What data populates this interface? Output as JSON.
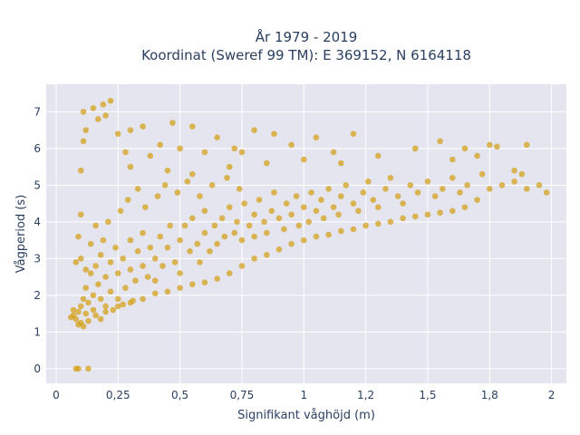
{
  "chart_data": {
    "type": "scatter",
    "title": "År 1979 - 2019",
    "subtitle": "Koordinat (Sweref 99 TM): E 369152, N 6164118",
    "xlabel": "Signifikant våghöjd (m)",
    "ylabel": "Vågperiod (s)",
    "xlim": [
      -0.04,
      2.06
    ],
    "ylim": [
      -0.4,
      7.75
    ],
    "x_ticks": [
      0,
      0.25,
      0.5,
      0.75,
      1,
      1.25,
      1.5,
      1.75,
      2
    ],
    "x_tick_labels": [
      "0",
      "0,25",
      "0,5",
      "0,75",
      "1",
      "1,2",
      "1,5",
      "1,8",
      "2"
    ],
    "y_ticks": [
      0,
      1,
      2,
      3,
      4,
      5,
      6,
      7
    ],
    "y_tick_labels": [
      "0",
      "1",
      "2",
      "3",
      "4",
      "5",
      "6",
      "7"
    ],
    "grid": true,
    "legend": false,
    "marker_color": "#D4A11E",
    "plot_background": "#E5E5F0",
    "points": [
      [
        0.07,
        1.45
      ],
      [
        0.08,
        1.35
      ],
      [
        0.09,
        1.55
      ],
      [
        0.1,
        1.7
      ],
      [
        0.1,
        1.25
      ],
      [
        0.11,
        1.9
      ],
      [
        0.12,
        1.5
      ],
      [
        0.12,
        2.2
      ],
      [
        0.13,
        1.8
      ],
      [
        0.14,
        2.6
      ],
      [
        0.15,
        2.0
      ],
      [
        0.15,
        1.6
      ],
      [
        0.16,
        2.8
      ],
      [
        0.17,
        2.3
      ],
      [
        0.18,
        1.9
      ],
      [
        0.18,
        3.1
      ],
      [
        0.2,
        2.5
      ],
      [
        0.2,
        1.7
      ],
      [
        0.22,
        2.9
      ],
      [
        0.22,
        2.1
      ],
      [
        0.24,
        3.3
      ],
      [
        0.25,
        2.6
      ],
      [
        0.25,
        1.9
      ],
      [
        0.27,
        3.0
      ],
      [
        0.28,
        2.2
      ],
      [
        0.3,
        3.5
      ],
      [
        0.3,
        2.7
      ],
      [
        0.32,
        2.4
      ],
      [
        0.33,
        3.2
      ],
      [
        0.35,
        2.8
      ],
      [
        0.35,
        3.7
      ],
      [
        0.37,
        2.5
      ],
      [
        0.38,
        3.3
      ],
      [
        0.4,
        3.0
      ],
      [
        0.4,
        2.4
      ],
      [
        0.42,
        3.6
      ],
      [
        0.43,
        2.8
      ],
      [
        0.45,
        3.3
      ],
      [
        0.46,
        3.9
      ],
      [
        0.48,
        2.9
      ],
      [
        0.5,
        3.5
      ],
      [
        0.5,
        2.6
      ],
      [
        0.52,
        3.9
      ],
      [
        0.54,
        3.2
      ],
      [
        0.55,
        4.1
      ],
      [
        0.57,
        3.4
      ],
      [
        0.58,
        2.9
      ],
      [
        0.6,
        3.7
      ],
      [
        0.6,
        4.3
      ],
      [
        0.62,
        3.2
      ],
      [
        0.64,
        3.9
      ],
      [
        0.65,
        3.4
      ],
      [
        0.67,
        4.1
      ],
      [
        0.68,
        3.6
      ],
      [
        0.7,
        4.4
      ],
      [
        0.72,
        3.7
      ],
      [
        0.73,
        4.0
      ],
      [
        0.75,
        3.5
      ],
      [
        0.76,
        4.5
      ],
      [
        0.78,
        3.9
      ],
      [
        0.8,
        4.2
      ],
      [
        0.8,
        3.6
      ],
      [
        0.82,
        4.6
      ],
      [
        0.84,
        4.0
      ],
      [
        0.85,
        3.7
      ],
      [
        0.87,
        4.3
      ],
      [
        0.88,
        4.8
      ],
      [
        0.9,
        4.1
      ],
      [
        0.92,
        3.8
      ],
      [
        0.93,
        4.5
      ],
      [
        0.95,
        4.2
      ],
      [
        0.97,
        4.7
      ],
      [
        0.98,
        3.9
      ],
      [
        1.0,
        4.4
      ],
      [
        1.02,
        4.0
      ],
      [
        1.03,
        4.8
      ],
      [
        1.05,
        4.3
      ],
      [
        1.07,
        4.6
      ],
      [
        1.08,
        4.1
      ],
      [
        1.1,
        4.9
      ],
      [
        1.12,
        4.4
      ],
      [
        1.14,
        4.2
      ],
      [
        1.15,
        4.7
      ],
      [
        1.17,
        5.0
      ],
      [
        1.2,
        4.5
      ],
      [
        1.22,
        4.3
      ],
      [
        1.24,
        4.8
      ],
      [
        1.26,
        5.1
      ],
      [
        1.28,
        4.6
      ],
      [
        1.3,
        4.4
      ],
      [
        1.33,
        4.9
      ],
      [
        1.35,
        5.2
      ],
      [
        1.38,
        4.7
      ],
      [
        1.4,
        4.5
      ],
      [
        1.43,
        5.0
      ],
      [
        1.46,
        4.8
      ],
      [
        1.5,
        5.1
      ],
      [
        1.53,
        4.7
      ],
      [
        1.56,
        4.9
      ],
      [
        1.6,
        5.2
      ],
      [
        1.63,
        4.8
      ],
      [
        1.66,
        5.0
      ],
      [
        1.7,
        4.6
      ],
      [
        1.72,
        5.3
      ],
      [
        1.75,
        4.9
      ],
      [
        1.8,
        5.0
      ],
      [
        1.85,
        5.1
      ],
      [
        1.9,
        4.9
      ],
      [
        1.95,
        5.0
      ],
      [
        1.98,
        4.8
      ],
      [
        0.1,
        4.2
      ],
      [
        0.1,
        5.4
      ],
      [
        0.11,
        6.2
      ],
      [
        0.12,
        6.5
      ],
      [
        0.11,
        7.0
      ],
      [
        0.15,
        7.1
      ],
      [
        0.17,
        6.8
      ],
      [
        0.19,
        7.2
      ],
      [
        0.2,
        6.9
      ],
      [
        0.22,
        7.3
      ],
      [
        0.25,
        6.4
      ],
      [
        0.28,
        5.9
      ],
      [
        0.3,
        6.5
      ],
      [
        0.35,
        6.6
      ],
      [
        0.38,
        5.8
      ],
      [
        0.42,
        6.1
      ],
      [
        0.47,
        6.7
      ],
      [
        0.5,
        6.0
      ],
      [
        0.55,
        6.6
      ],
      [
        0.6,
        5.9
      ],
      [
        0.65,
        6.3
      ],
      [
        0.72,
        6.0
      ],
      [
        0.8,
        6.5
      ],
      [
        0.88,
        6.4
      ],
      [
        0.95,
        6.1
      ],
      [
        1.05,
        6.3
      ],
      [
        1.12,
        5.9
      ],
      [
        1.2,
        6.4
      ],
      [
        1.3,
        5.8
      ],
      [
        1.45,
        6.0
      ],
      [
        1.55,
        6.2
      ],
      [
        1.6,
        5.7
      ],
      [
        1.65,
        6.0
      ],
      [
        1.7,
        5.8
      ],
      [
        1.75,
        6.1
      ],
      [
        1.78,
        6.05
      ],
      [
        1.9,
        6.1
      ],
      [
        1.85,
        5.4
      ],
      [
        1.88,
        5.3
      ],
      [
        0.09,
        0.0
      ],
      [
        0.08,
        0.0
      ],
      [
        0.13,
        0.0
      ],
      [
        0.3,
        5.5
      ],
      [
        0.45,
        5.4
      ],
      [
        0.55,
        5.3
      ],
      [
        0.7,
        5.5
      ],
      [
        0.75,
        5.9
      ],
      [
        0.85,
        5.6
      ],
      [
        1.0,
        5.7
      ],
      [
        1.15,
        5.6
      ],
      [
        0.08,
        2.9
      ],
      [
        0.09,
        3.6
      ],
      [
        0.1,
        3.0
      ],
      [
        0.12,
        2.7
      ],
      [
        0.14,
        3.4
      ],
      [
        0.16,
        3.9
      ],
      [
        0.19,
        3.5
      ],
      [
        0.21,
        4.0
      ],
      [
        0.26,
        4.3
      ],
      [
        0.29,
        4.6
      ],
      [
        0.33,
        4.9
      ],
      [
        0.36,
        4.4
      ],
      [
        0.41,
        4.7
      ],
      [
        0.44,
        5.0
      ],
      [
        0.49,
        4.8
      ],
      [
        0.53,
        5.1
      ],
      [
        0.58,
        4.7
      ],
      [
        0.63,
        5.0
      ],
      [
        0.69,
        5.2
      ],
      [
        0.74,
        4.9
      ],
      [
        0.2,
        1.55
      ],
      [
        0.25,
        1.7
      ],
      [
        0.3,
        1.8
      ],
      [
        0.35,
        1.9
      ],
      [
        0.4,
        2.05
      ],
      [
        0.45,
        2.1
      ],
      [
        0.5,
        2.2
      ],
      [
        0.55,
        2.3
      ],
      [
        0.6,
        2.35
      ],
      [
        0.65,
        2.45
      ],
      [
        0.7,
        2.6
      ],
      [
        0.75,
        2.8
      ],
      [
        0.8,
        3.0
      ],
      [
        0.85,
        3.1
      ],
      [
        0.9,
        3.25
      ],
      [
        0.95,
        3.4
      ],
      [
        1.0,
        3.5
      ],
      [
        1.05,
        3.6
      ],
      [
        1.1,
        3.65
      ],
      [
        1.15,
        3.75
      ],
      [
        1.2,
        3.8
      ],
      [
        1.25,
        3.9
      ],
      [
        1.3,
        3.95
      ],
      [
        1.35,
        4.0
      ],
      [
        1.4,
        4.1
      ],
      [
        1.45,
        4.15
      ],
      [
        1.5,
        4.2
      ],
      [
        1.55,
        4.25
      ],
      [
        1.6,
        4.3
      ],
      [
        1.65,
        4.4
      ],
      [
        0.06,
        1.4
      ],
      [
        0.07,
        1.6
      ],
      [
        0.09,
        1.2
      ],
      [
        0.11,
        1.15
      ],
      [
        0.13,
        1.3
      ],
      [
        0.16,
        1.45
      ],
      [
        0.18,
        1.35
      ],
      [
        0.23,
        1.6
      ],
      [
        0.27,
        1.75
      ],
      [
        0.31,
        1.85
      ]
    ]
  }
}
